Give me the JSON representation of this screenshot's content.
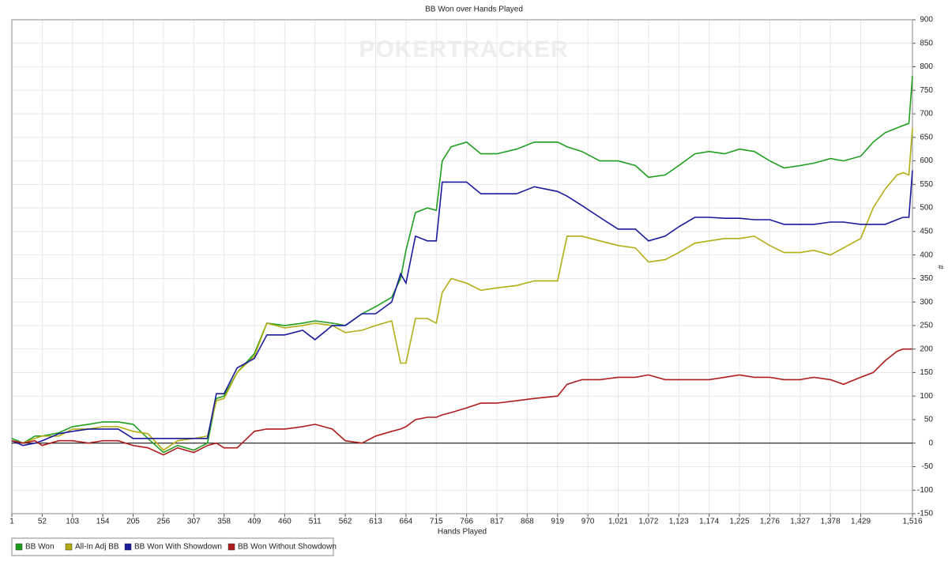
{
  "chart_data": {
    "type": "line",
    "title": "BB Won over Hands Played",
    "watermark": "POKERTRACKER",
    "x_label": "Hands Played",
    "y_label": "#",
    "x": [
      1,
      20,
      40,
      52,
      80,
      103,
      130,
      154,
      180,
      205,
      230,
      256,
      280,
      307,
      330,
      345,
      358,
      380,
      409,
      430,
      460,
      490,
      511,
      540,
      562,
      590,
      613,
      640,
      655,
      664,
      680,
      700,
      715,
      725,
      740,
      766,
      790,
      817,
      850,
      880,
      919,
      935,
      960,
      990,
      1021,
      1050,
      1072,
      1100,
      1123,
      1150,
      1174,
      1200,
      1225,
      1250,
      1276,
      1300,
      1327,
      1350,
      1378,
      1400,
      1429,
      1450,
      1470,
      1490,
      1500,
      1510,
      1516
    ],
    "series": [
      {
        "name": "BB Won",
        "color": "#1f9e1f",
        "values": [
          10,
          0,
          15,
          15,
          22,
          35,
          40,
          45,
          45,
          40,
          10,
          -20,
          -5,
          -15,
          0,
          95,
          100,
          150,
          190,
          255,
          250,
          255,
          260,
          255,
          250,
          275,
          290,
          310,
          350,
          410,
          490,
          500,
          495,
          600,
          630,
          640,
          615,
          615,
          625,
          640,
          640,
          630,
          620,
          600,
          600,
          590,
          565,
          570,
          590,
          615,
          620,
          615,
          625,
          620,
          600,
          585,
          590,
          595,
          605,
          600,
          610,
          640,
          660,
          670,
          675,
          680,
          780
        ]
      },
      {
        "name": "All-In Adj BB",
        "color": "#b3ad14",
        "values": [
          5,
          0,
          10,
          15,
          15,
          30,
          30,
          35,
          35,
          25,
          20,
          -15,
          5,
          10,
          15,
          90,
          95,
          150,
          185,
          255,
          245,
          250,
          255,
          250,
          235,
          240,
          250,
          260,
          170,
          170,
          265,
          265,
          255,
          320,
          350,
          340,
          325,
          330,
          335,
          345,
          345,
          440,
          440,
          430,
          420,
          415,
          385,
          390,
          405,
          425,
          430,
          435,
          435,
          440,
          420,
          405,
          405,
          410,
          400,
          415,
          435,
          500,
          540,
          570,
          575,
          570,
          670
        ]
      },
      {
        "name": "BB Won With Showdown",
        "color": "#1a1a9c",
        "values": [
          5,
          -5,
          0,
          5,
          20,
          25,
          30,
          30,
          30,
          10,
          10,
          10,
          10,
          10,
          10,
          105,
          105,
          160,
          180,
          230,
          230,
          240,
          220,
          250,
          250,
          275,
          275,
          300,
          360,
          340,
          440,
          430,
          430,
          555,
          555,
          555,
          530,
          530,
          530,
          545,
          535,
          525,
          505,
          480,
          455,
          455,
          430,
          440,
          460,
          480,
          480,
          478,
          478,
          475,
          475,
          465,
          465,
          465,
          470,
          470,
          465,
          465,
          465,
          475,
          480,
          480,
          580
        ]
      },
      {
        "name": "BB Won Without Showdown",
        "color": "#b01c1c",
        "values": [
          5,
          0,
          5,
          -5,
          5,
          5,
          0,
          5,
          5,
          -5,
          -10,
          -25,
          -10,
          -20,
          -5,
          0,
          -10,
          -10,
          25,
          30,
          30,
          35,
          40,
          30,
          5,
          0,
          15,
          25,
          30,
          35,
          50,
          55,
          55,
          60,
          65,
          75,
          85,
          85,
          90,
          95,
          100,
          125,
          135,
          135,
          140,
          140,
          145,
          135,
          135,
          135,
          135,
          140,
          145,
          140,
          140,
          135,
          135,
          140,
          135,
          125,
          140,
          150,
          175,
          195,
          200,
          200,
          200
        ]
      }
    ],
    "xlim": [
      1,
      1516
    ],
    "xticks": [
      1,
      52,
      103,
      154,
      205,
      256,
      307,
      358,
      409,
      460,
      511,
      562,
      613,
      664,
      715,
      766,
      817,
      868,
      919,
      970,
      {
        "value": 1021,
        "label": "1,021"
      },
      {
        "value": 1072,
        "label": "1,072"
      },
      {
        "value": 1123,
        "label": "1,123"
      },
      {
        "value": 1174,
        "label": "1,174"
      },
      {
        "value": 1225,
        "label": "1,225"
      },
      {
        "value": 1276,
        "label": "1,276"
      },
      {
        "value": 1327,
        "label": "1,327"
      },
      {
        "value": 1378,
        "label": "1,378"
      },
      {
        "value": 1429,
        "label": "1,429"
      },
      {
        "value": 1516,
        "label": "1,516"
      }
    ],
    "ylim": [
      -150,
      900
    ],
    "yticks": [
      -150,
      -100,
      -50,
      0,
      50,
      100,
      150,
      200,
      250,
      300,
      350,
      400,
      450,
      500,
      550,
      600,
      650,
      700,
      750,
      800,
      850,
      900
    ],
    "grid": true
  }
}
